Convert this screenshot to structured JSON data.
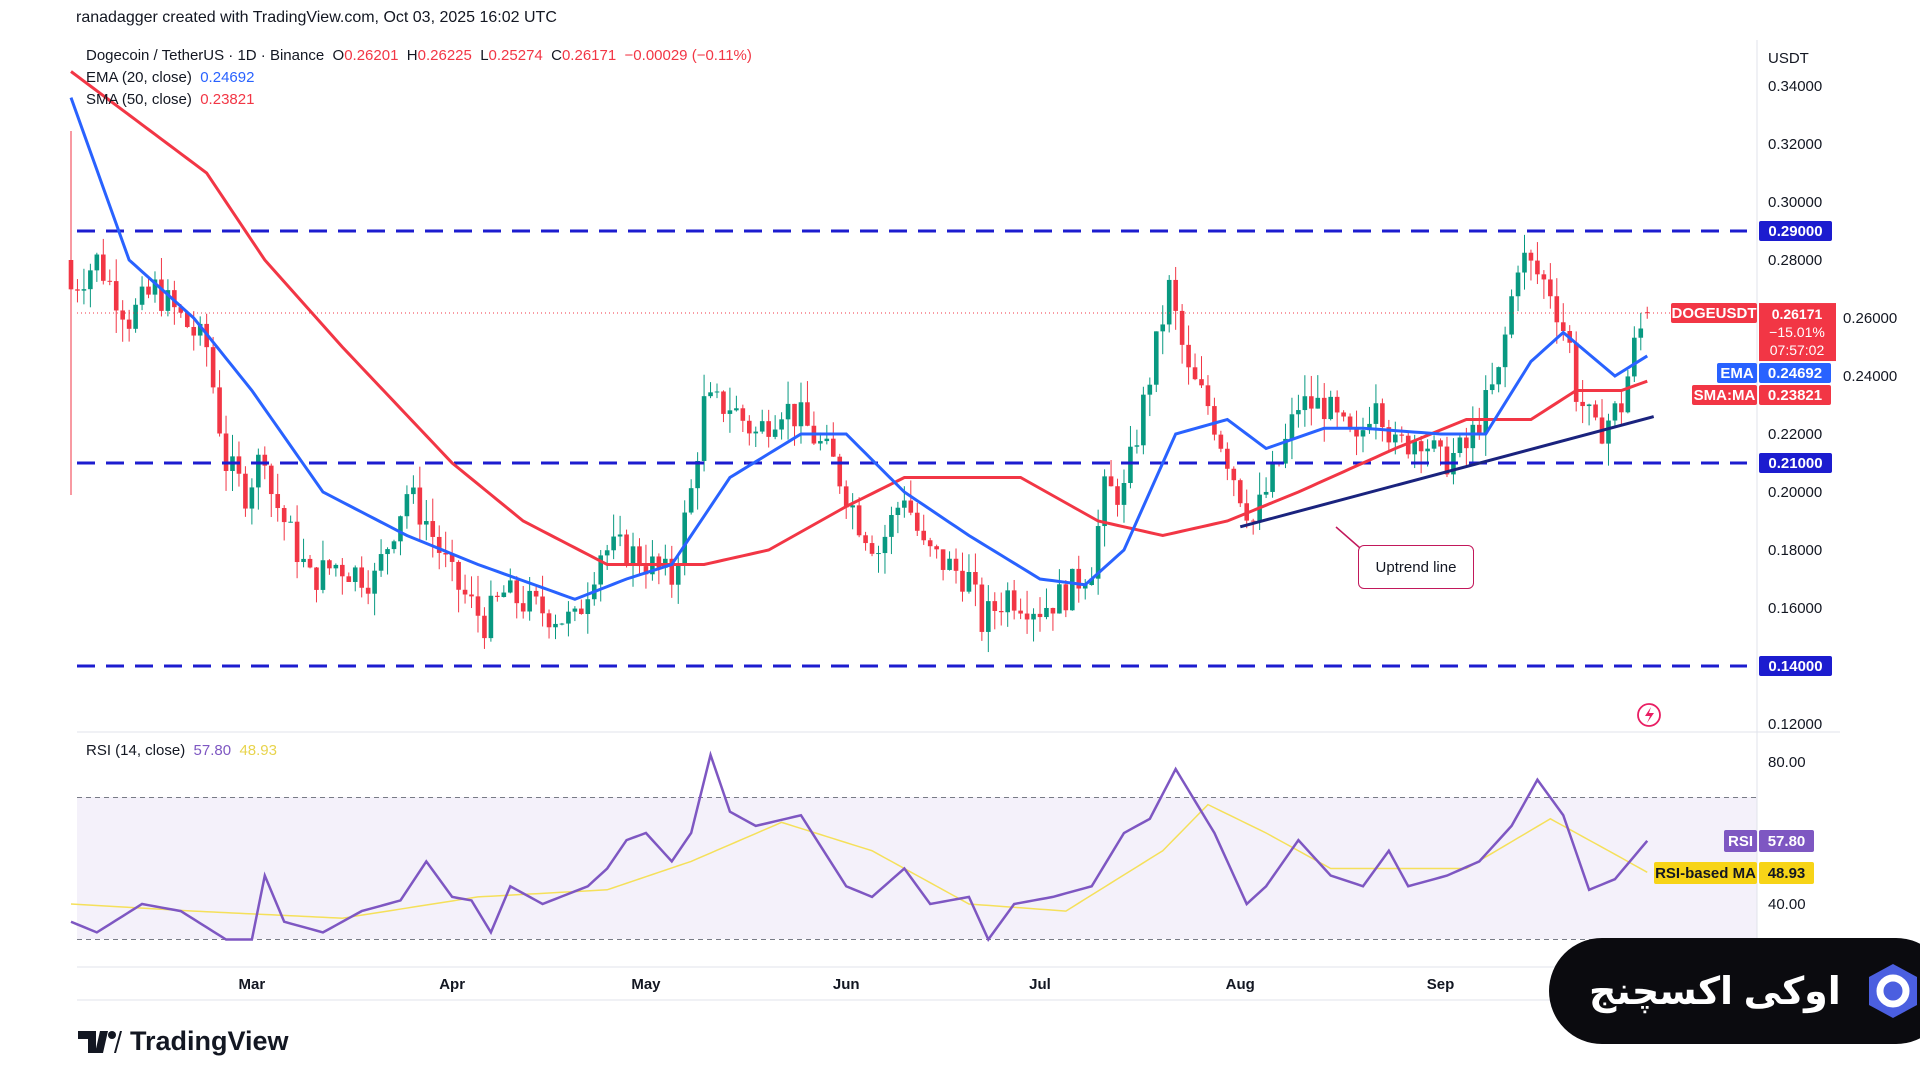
{
  "credit": "ranadagger created with TradingView.com, Oct 03, 2025 16:02 UTC",
  "legend": {
    "symbol": "Dogecoin / TetherUS · 1D · Binance",
    "o_label": "O",
    "o": "0.26201",
    "h_label": "H",
    "h": "0.26225",
    "l_label": "L",
    "l": "0.25274",
    "c_label": "C",
    "c": "0.26171",
    "change": "−0.00029 (−0.11%)",
    "ema_label": "EMA (20, close)",
    "ema_value": "0.24692",
    "sma_label": "SMA (50, close)",
    "sma_value": "0.23821",
    "rsi_label": "RSI (14, close)",
    "rsi_value": "57.80",
    "rsi_ma_value": "48.93"
  },
  "badges": {
    "currency": "USDT",
    "symbol": "DOGEUSDT",
    "price": "0.26171",
    "pct": "−15.01%",
    "countdown": "07:57:02",
    "ema": "EMA",
    "ema_value": "0.24692",
    "sma": "SMA:MA",
    "sma_value": "0.23821",
    "rsi": "RSI",
    "rsi_value": "57.80",
    "rsi_ma": "RSI-based MA",
    "rsi_ma_value": "48.93",
    "levels": [
      "0.29000",
      "0.21000",
      "0.14000"
    ]
  },
  "annotation": "Uptrend line",
  "footer": {
    "logo": "TradingView"
  },
  "watermark": "اوکی اکسچنج",
  "colors": {
    "up": "#089981",
    "down": "#f23645",
    "ema": "#2962ff",
    "sma": "#f23645",
    "level": "#1c1ccf",
    "rsi": "#7e57c2",
    "rsi_ma": "#f5e05a"
  },
  "chart_data": {
    "type": "candlestick",
    "title": "Dogecoin / TetherUS · 1D · Binance",
    "x_start": "2025-02-01",
    "x_end": "2025-10-03",
    "month_ticks": [
      [
        "Mar",
        28
      ],
      [
        "Apr",
        59
      ],
      [
        "May",
        89
      ],
      [
        "Jun",
        120
      ],
      [
        "Jul",
        150
      ],
      [
        "Aug",
        181
      ],
      [
        "Sep",
        212
      ]
    ],
    "y_ticks": [
      "0.34000",
      "0.32000",
      "0.30000",
      "0.28000",
      "0.26000",
      "0.24000",
      "0.22000",
      "0.20000",
      "0.18000",
      "0.16000",
      "0.12000"
    ],
    "ylim": [
      0.12,
      0.34
    ],
    "levels": [
      0.29,
      0.21,
      0.14
    ],
    "trendline": [
      [
        181,
        0.188
      ],
      [
        245,
        0.226
      ]
    ],
    "close_waypoints": [
      [
        0,
        0.27
      ],
      [
        4,
        0.28
      ],
      [
        9,
        0.26
      ],
      [
        13,
        0.27
      ],
      [
        17,
        0.26
      ],
      [
        21,
        0.25
      ],
      [
        24,
        0.21
      ],
      [
        27,
        0.2
      ],
      [
        30,
        0.215
      ],
      [
        31,
        0.2
      ],
      [
        37,
        0.17
      ],
      [
        41,
        0.175
      ],
      [
        47,
        0.17
      ],
      [
        52,
        0.2
      ],
      [
        55,
        0.19
      ],
      [
        59,
        0.17
      ],
      [
        64,
        0.155
      ],
      [
        67,
        0.165
      ],
      [
        72,
        0.16
      ],
      [
        78,
        0.155
      ],
      [
        82,
        0.18
      ],
      [
        86,
        0.18
      ],
      [
        93,
        0.17
      ],
      [
        96,
        0.2
      ],
      [
        98,
        0.23
      ],
      [
        102,
        0.23
      ],
      [
        106,
        0.22
      ],
      [
        110,
        0.23
      ],
      [
        113,
        0.225
      ],
      [
        118,
        0.21
      ],
      [
        122,
        0.19
      ],
      [
        125,
        0.18
      ],
      [
        129,
        0.2
      ],
      [
        132,
        0.18
      ],
      [
        139,
        0.17
      ],
      [
        141,
        0.155
      ],
      [
        145,
        0.165
      ],
      [
        150,
        0.16
      ],
      [
        154,
        0.165
      ],
      [
        158,
        0.175
      ],
      [
        160,
        0.2
      ],
      [
        163,
        0.2
      ],
      [
        167,
        0.24
      ],
      [
        170,
        0.27
      ],
      [
        173,
        0.24
      ],
      [
        176,
        0.23
      ],
      [
        181,
        0.2
      ],
      [
        183,
        0.19
      ],
      [
        187,
        0.21
      ],
      [
        190,
        0.23
      ],
      [
        194,
        0.23
      ],
      [
        199,
        0.215
      ],
      [
        202,
        0.235
      ],
      [
        205,
        0.215
      ],
      [
        209,
        0.22
      ],
      [
        212,
        0.21
      ],
      [
        216,
        0.215
      ],
      [
        221,
        0.24
      ],
      [
        224,
        0.28
      ],
      [
        225,
        0.28
      ],
      [
        229,
        0.27
      ],
      [
        232,
        0.25
      ],
      [
        233,
        0.235
      ],
      [
        236,
        0.22
      ],
      [
        240,
        0.23
      ],
      [
        242,
        0.25
      ],
      [
        244,
        0.26171
      ]
    ],
    "ema20": [
      [
        0,
        0.336
      ],
      [
        9,
        0.28
      ],
      [
        19,
        0.26
      ],
      [
        28,
        0.235
      ],
      [
        39,
        0.2
      ],
      [
        52,
        0.185
      ],
      [
        63,
        0.175
      ],
      [
        78,
        0.163
      ],
      [
        86,
        0.17
      ],
      [
        93,
        0.175
      ],
      [
        102,
        0.205
      ],
      [
        113,
        0.22
      ],
      [
        120,
        0.22
      ],
      [
        129,
        0.2
      ],
      [
        139,
        0.185
      ],
      [
        150,
        0.17
      ],
      [
        157,
        0.168
      ],
      [
        163,
        0.18
      ],
      [
        171,
        0.22
      ],
      [
        179,
        0.225
      ],
      [
        185,
        0.215
      ],
      [
        194,
        0.222
      ],
      [
        200,
        0.222
      ],
      [
        212,
        0.22
      ],
      [
        219,
        0.22
      ],
      [
        226,
        0.245
      ],
      [
        231,
        0.255
      ],
      [
        239,
        0.24
      ],
      [
        244,
        0.24692
      ]
    ],
    "sma50": [
      [
        0,
        0.345
      ],
      [
        9,
        0.33
      ],
      [
        21,
        0.31
      ],
      [
        30,
        0.28
      ],
      [
        42,
        0.25
      ],
      [
        59,
        0.21
      ],
      [
        70,
        0.19
      ],
      [
        83,
        0.175
      ],
      [
        98,
        0.175
      ],
      [
        108,
        0.18
      ],
      [
        120,
        0.195
      ],
      [
        129,
        0.205
      ],
      [
        147,
        0.205
      ],
      [
        159,
        0.19
      ],
      [
        169,
        0.185
      ],
      [
        179,
        0.19
      ],
      [
        190,
        0.2
      ],
      [
        205,
        0.215
      ],
      [
        216,
        0.225
      ],
      [
        226,
        0.225
      ],
      [
        233,
        0.235
      ],
      [
        240,
        0.235
      ],
      [
        244,
        0.23821
      ]
    ],
    "rsi_range": [
      20,
      90
    ],
    "rsi_ticks": [
      "80.00",
      "40.00"
    ],
    "rsi_bands": [
      70,
      30
    ],
    "rsi": [
      [
        0,
        35
      ],
      [
        4,
        32
      ],
      [
        11,
        40
      ],
      [
        17,
        38
      ],
      [
        24,
        30
      ],
      [
        28,
        30
      ],
      [
        30,
        48
      ],
      [
        33,
        35
      ],
      [
        39,
        32
      ],
      [
        45,
        38
      ],
      [
        51,
        41
      ],
      [
        55,
        52
      ],
      [
        59,
        42
      ],
      [
        62,
        41
      ],
      [
        65,
        32
      ],
      [
        68,
        45
      ],
      [
        73,
        40
      ],
      [
        80,
        45
      ],
      [
        83,
        50
      ],
      [
        86,
        58
      ],
      [
        89,
        60
      ],
      [
        93,
        52
      ],
      [
        96,
        60
      ],
      [
        99,
        82
      ],
      [
        102,
        66
      ],
      [
        106,
        62
      ],
      [
        113,
        65
      ],
      [
        120,
        45
      ],
      [
        124,
        42
      ],
      [
        129,
        50
      ],
      [
        133,
        40
      ],
      [
        139,
        42
      ],
      [
        142,
        30
      ],
      [
        146,
        40
      ],
      [
        152,
        42
      ],
      [
        158,
        45
      ],
      [
        163,
        60
      ],
      [
        167,
        64
      ],
      [
        171,
        78
      ],
      [
        173,
        72
      ],
      [
        177,
        60
      ],
      [
        182,
        40
      ],
      [
        185,
        45
      ],
      [
        190,
        58
      ],
      [
        195,
        48
      ],
      [
        200,
        45
      ],
      [
        204,
        55
      ],
      [
        207,
        45
      ],
      [
        213,
        48
      ],
      [
        218,
        52
      ],
      [
        223,
        62
      ],
      [
        227,
        75
      ],
      [
        231,
        65
      ],
      [
        235,
        44
      ],
      [
        239,
        47
      ],
      [
        244,
        57.8
      ]
    ],
    "rsi_ma": [
      [
        0,
        40
      ],
      [
        19,
        38
      ],
      [
        42,
        36
      ],
      [
        63,
        42
      ],
      [
        83,
        44
      ],
      [
        96,
        52
      ],
      [
        110,
        63
      ],
      [
        124,
        55
      ],
      [
        139,
        40
      ],
      [
        154,
        38
      ],
      [
        169,
        55
      ],
      [
        176,
        68
      ],
      [
        185,
        60
      ],
      [
        195,
        50
      ],
      [
        216,
        50
      ],
      [
        229,
        64
      ],
      [
        239,
        54
      ],
      [
        244,
        48.93
      ]
    ]
  }
}
